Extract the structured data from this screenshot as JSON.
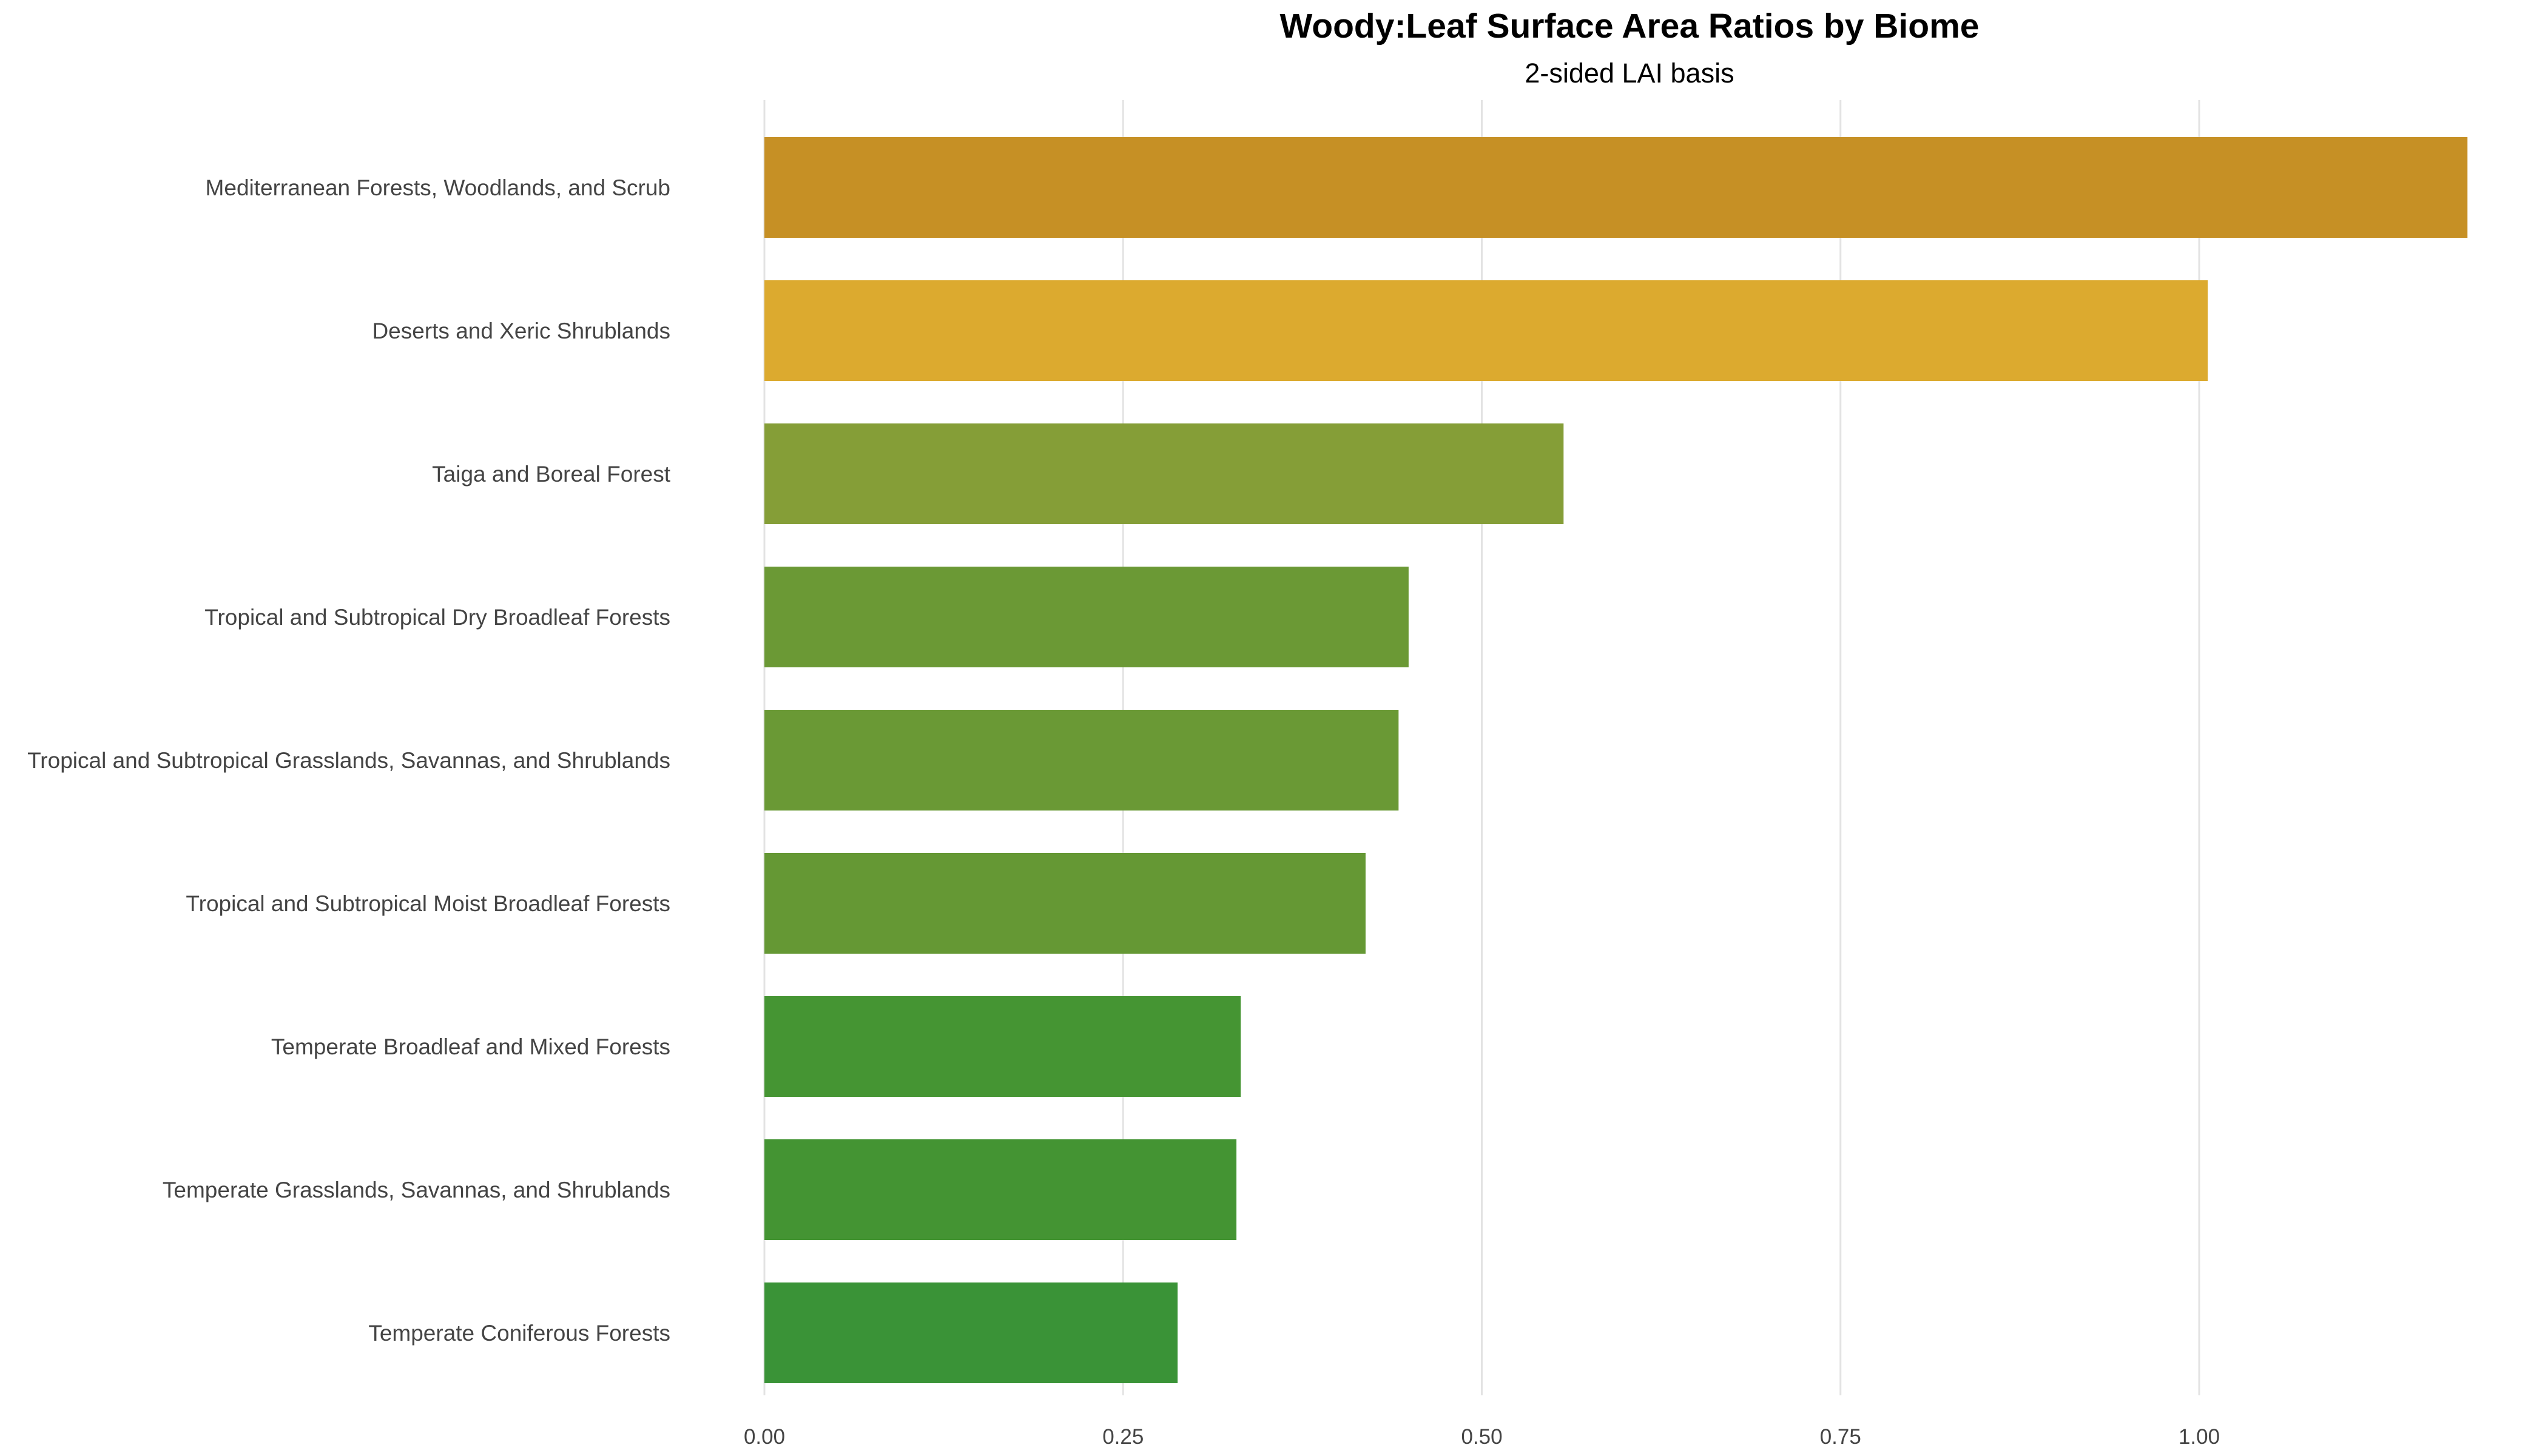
{
  "chart_data": {
    "type": "bar",
    "orientation": "horizontal",
    "title": "Woody:Leaf Surface Area Ratios by Biome",
    "subtitle": "2-sided LAI basis",
    "xlabel": "",
    "ylabel": "",
    "xlim": [
      0,
      1.19
    ],
    "x_ticks": [
      0,
      0.25,
      0.5,
      0.75,
      1.0
    ],
    "x_tick_labels": [
      "0.00",
      "0.25",
      "0.50",
      "0.75",
      "1.00"
    ],
    "grid": "vertical major",
    "legend": "none",
    "categories": [
      "Mediterranean Forests, Woodlands, and Scrub",
      "Deserts and Xeric Shrublands",
      "Taiga and Boreal Forest",
      "Tropical and Subtropical Dry Broadleaf Forests",
      "Tropical and Subtropical Grasslands, Savannas, and Shrublands",
      "Tropical and Subtropical Moist Broadleaf Forests",
      "Temperate Broadleaf and Mixed Forests",
      "Temperate Grasslands, Savannas, and Shrublands",
      "Temperate Coniferous Forests"
    ],
    "values": [
      1.187,
      1.006,
      0.557,
      0.449,
      0.442,
      0.419,
      0.332,
      0.329,
      0.288
    ],
    "colors": [
      "#c69025",
      "#dcaa2f",
      "#859e37",
      "#6b9935",
      "#6a9935",
      "#659834",
      "#459533",
      "#449433",
      "#3a9337"
    ]
  }
}
